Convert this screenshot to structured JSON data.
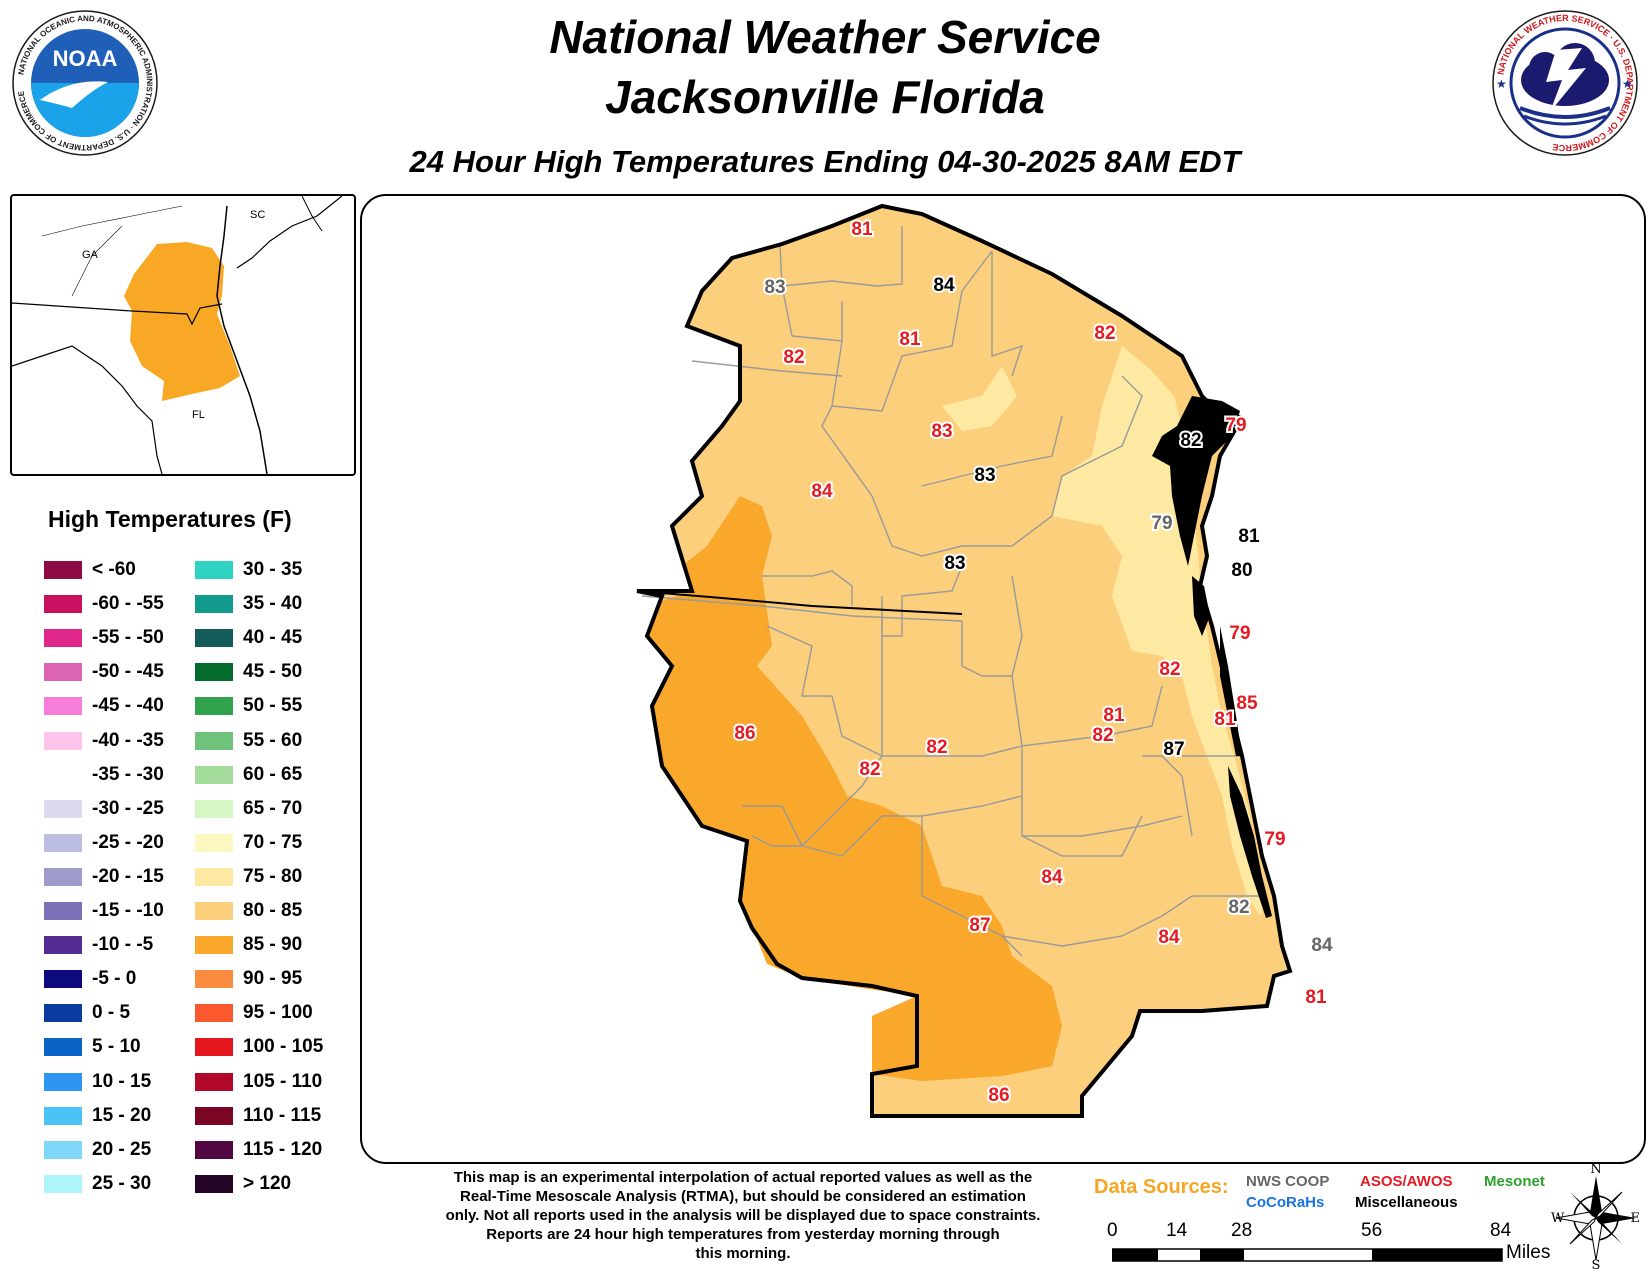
{
  "header": {
    "line1": "National Weather Service",
    "line2": "Jacksonville Florida",
    "subtitle": "24 Hour High Temperatures Ending 04-30-2025 8AM EDT"
  },
  "logos": {
    "noaa": {
      "center_text": "NOAA",
      "ring_text": "NATIONAL OCEANIC AND ATMOSPHERIC ADMINISTRATION · U.S. DEPARTMENT OF COMMERCE"
    },
    "nws": {
      "ring_text": "NATIONAL WEATHER SERVICE · U.S. DEPARTMENT OF COMMERCE"
    }
  },
  "inset": {
    "labels": {
      "ga": "GA",
      "sc": "SC",
      "fl": "FL"
    },
    "highlight_color": "#f9a825"
  },
  "legend": {
    "title": "High Temperatures (F)",
    "items": [
      {
        "label": "< -60",
        "color": "#8e0a47"
      },
      {
        "label": "-60 - -55",
        "color": "#c7105e"
      },
      {
        "label": "-55 - -50",
        "color": "#e0288a"
      },
      {
        "label": "-50 - -45",
        "color": "#dd64b0"
      },
      {
        "label": "-45 - -40",
        "color": "#f77ddb"
      },
      {
        "label": "-40 - -35",
        "color": "#ffc4ec"
      },
      {
        "label": "-35 - -30",
        "color": "#ffffff"
      },
      {
        "label": "-30 - -25",
        "color": "#dcdaec"
      },
      {
        "label": "-25 - -20",
        "color": "#bcbde0"
      },
      {
        "label": "-20 - -15",
        "color": "#9e9ccd"
      },
      {
        "label": "-15 - -10",
        "color": "#7c70b8"
      },
      {
        "label": "-10 - -5",
        "color": "#542a93"
      },
      {
        "label": "-5 - 0",
        "color": "#0c0a7e"
      },
      {
        "label": "0 - 5",
        "color": "#0c3b9f"
      },
      {
        "label": "5 - 10",
        "color": "#0a64c8"
      },
      {
        "label": "10 - 15",
        "color": "#2c96f2"
      },
      {
        "label": "15 - 20",
        "color": "#4cc3f7"
      },
      {
        "label": "20 - 25",
        "color": "#7fd8fa"
      },
      {
        "label": "25 - 30",
        "color": "#aef5fb"
      },
      {
        "label": "30 - 35",
        "color": "#2fd3c3"
      },
      {
        "label": "35 - 40",
        "color": "#129a8d"
      },
      {
        "label": "40 - 45",
        "color": "#145c5a"
      },
      {
        "label": "45 - 50",
        "color": "#036b2b"
      },
      {
        "label": "50 - 55",
        "color": "#30a24c"
      },
      {
        "label": "55 - 60",
        "color": "#6ec27a"
      },
      {
        "label": "60 - 65",
        "color": "#a4dc9b"
      },
      {
        "label": "65 - 70",
        "color": "#d4f7c4"
      },
      {
        "label": "70 - 75",
        "color": "#fbf8c0"
      },
      {
        "label": "75 - 80",
        "color": "#fde9a2"
      },
      {
        "label": "80 - 85",
        "color": "#fbcf7c"
      },
      {
        "label": "85 - 90",
        "color": "#f9a82b"
      },
      {
        "label": "90 - 95",
        "color": "#fc8b42"
      },
      {
        "label": "95 - 100",
        "color": "#fb582d"
      },
      {
        "label": "100 - 105",
        "color": "#e4171e"
      },
      {
        "label": "105 - 110",
        "color": "#b1082a"
      },
      {
        "label": "110 - 115",
        "color": "#7a0524"
      },
      {
        "label": "115 - 120",
        "color": "#520642"
      },
      {
        "label": "> 120",
        "color": "#250629"
      }
    ]
  },
  "observations": [
    {
      "value": "81",
      "source": "asos"
    },
    {
      "value": "83",
      "source": "coop"
    },
    {
      "value": "84",
      "source": "misc"
    },
    {
      "value": "82",
      "source": "asos"
    },
    {
      "value": "81",
      "source": "asos"
    },
    {
      "value": "82",
      "source": "asos"
    },
    {
      "value": "83",
      "source": "asos"
    },
    {
      "value": "82",
      "source": "misc"
    },
    {
      "value": "79",
      "source": "asos"
    },
    {
      "value": "83",
      "source": "misc"
    },
    {
      "value": "84",
      "source": "asos"
    },
    {
      "value": "79",
      "source": "coop"
    },
    {
      "value": "83",
      "source": "misc"
    },
    {
      "value": "81",
      "source": "misc"
    },
    {
      "value": "80",
      "source": "misc"
    },
    {
      "value": "79",
      "source": "asos"
    },
    {
      "value": "82",
      "source": "asos"
    },
    {
      "value": "85",
      "source": "asos"
    },
    {
      "value": "86",
      "source": "asos"
    },
    {
      "value": "82",
      "source": "asos"
    },
    {
      "value": "82",
      "source": "asos"
    },
    {
      "value": "81",
      "source": "asos"
    },
    {
      "value": "81",
      "source": "asos"
    },
    {
      "value": "87",
      "source": "misc"
    },
    {
      "value": "82",
      "source": "asos"
    },
    {
      "value": "79",
      "source": "asos"
    },
    {
      "value": "84",
      "source": "asos"
    },
    {
      "value": "87",
      "source": "asos"
    },
    {
      "value": "82",
      "source": "coop"
    },
    {
      "value": "84",
      "source": "asos"
    },
    {
      "value": "84",
      "source": "coop"
    },
    {
      "value": "81",
      "source": "asos"
    },
    {
      "value": "86",
      "source": "asos"
    }
  ],
  "observation_colors": {
    "asos": "#e31b23",
    "coop": "#666666",
    "misc": "#000000"
  },
  "disclaimer": [
    "This map is an experimental interpolation of actual reported values as well as the",
    "Real-Time Mesoscale Analysis (RTMA), but should be considered an estimation",
    "only. Not all reports used in the analysis will be displayed due to space constraints.",
    "Reports are 24 hour high temperatures from yesterday morning through",
    "this morning."
  ],
  "data_sources": {
    "label": "Data Sources:",
    "coop": {
      "text": "NWS COOP",
      "color": "#666666"
    },
    "asos": {
      "text": "ASOS/AWOS",
      "color": "#e31b23"
    },
    "mesonet": {
      "text": "Mesonet",
      "color": "#2ea02e"
    },
    "cocorahs": {
      "text": "CoCoRaHs",
      "color": "#1a73e8"
    },
    "misc": {
      "text": "Miscellaneous",
      "color": "#000000"
    }
  },
  "scale": {
    "ticks": [
      "0",
      "14",
      "28",
      "56",
      "84"
    ],
    "unit": "Miles"
  },
  "compass": {
    "n": "N",
    "s": "S",
    "e": "E",
    "w": "W"
  },
  "region_colors": {
    "c75_80": "#fde9a2",
    "c80_85": "#fbcf7c",
    "c85_90": "#f9a82b",
    "boundary": "#9a9a9a"
  }
}
